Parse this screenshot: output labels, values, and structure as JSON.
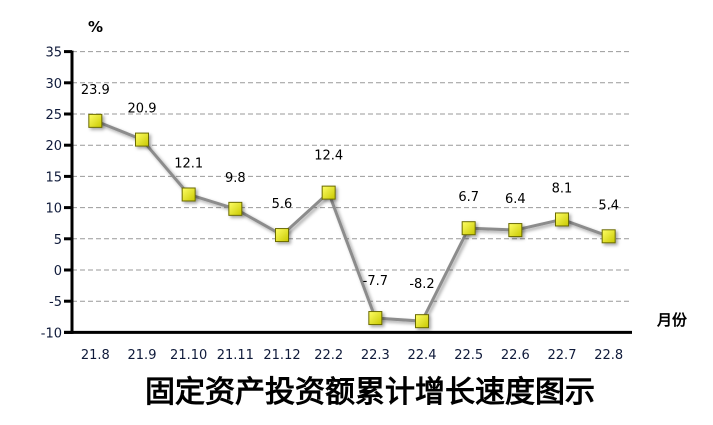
{
  "chart_data": {
    "type": "line",
    "title": "固定资产投资额累计增长速度图示",
    "xlabel": "月份",
    "ylabel": "%",
    "categories": [
      "21.8",
      "21.9",
      "21.10",
      "21.11",
      "21.12",
      "22.2",
      "22.3",
      "22.4",
      "22.5",
      "22.6",
      "22.7",
      "22.8"
    ],
    "values": [
      23.9,
      20.9,
      12.1,
      9.8,
      5.6,
      12.4,
      -7.7,
      -8.2,
      6.7,
      6.4,
      8.1,
      5.4
    ],
    "ylim": [
      -10,
      35
    ],
    "yticks": [
      35,
      30,
      25,
      20,
      15,
      10,
      5,
      0,
      -5,
      -10
    ],
    "grid": "horizontal dashed",
    "legend": "none",
    "colors": {
      "line": "#8c8c8c",
      "marker": "#e6e600",
      "marker_border": "#6b6b00",
      "axis": "#000000",
      "grid": "#999999"
    }
  }
}
